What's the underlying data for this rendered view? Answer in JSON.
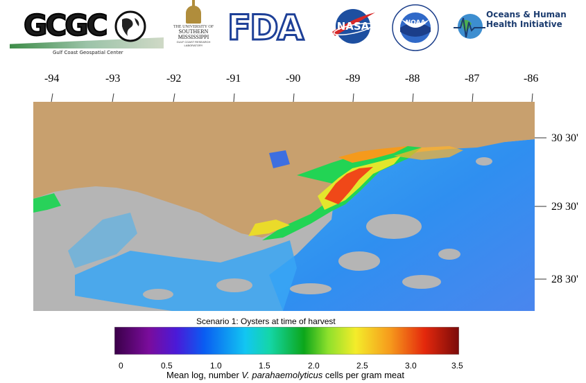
{
  "logos": {
    "gcgc": {
      "name": "GCGC",
      "subtitle": "Gulf Coast Geospatial Center"
    },
    "usm": {
      "line1": "THE UNIVERSITY OF",
      "line2": "SOUTHERN",
      "line3": "MISSISSIPPI",
      "line4": "GULF COAST RESEARCH",
      "line5": "LABORATORY"
    },
    "fda": {
      "name": "FDA"
    },
    "nasa": {
      "name": "NASA"
    },
    "noaa": {
      "name": "NOAA"
    },
    "ohhi": {
      "line1": "Oceans & Human",
      "line2": "Health Initiative"
    }
  },
  "map": {
    "longitude_labels": [
      "-94",
      "-93",
      "-92",
      "-91",
      "-90",
      "-89",
      "-88",
      "-87",
      "-86"
    ],
    "latitude_labels": [
      "30 30'",
      "29 30'",
      "28 30'"
    ],
    "colors": {
      "land": "#c8a06e",
      "nodata": "#b5b5b5"
    }
  },
  "colorbar": {
    "title": "Scenario 1: Oysters at time of harvest",
    "ticks": [
      "0",
      "0.5",
      "1.0",
      "1.5",
      "2.0",
      "2.5",
      "3.0",
      "3.5"
    ],
    "range": [
      0,
      3.5
    ],
    "label_pre": "Mean log, number ",
    "label_species": "V. parahaemolyticus",
    "label_post": " cells per gram meat"
  }
}
